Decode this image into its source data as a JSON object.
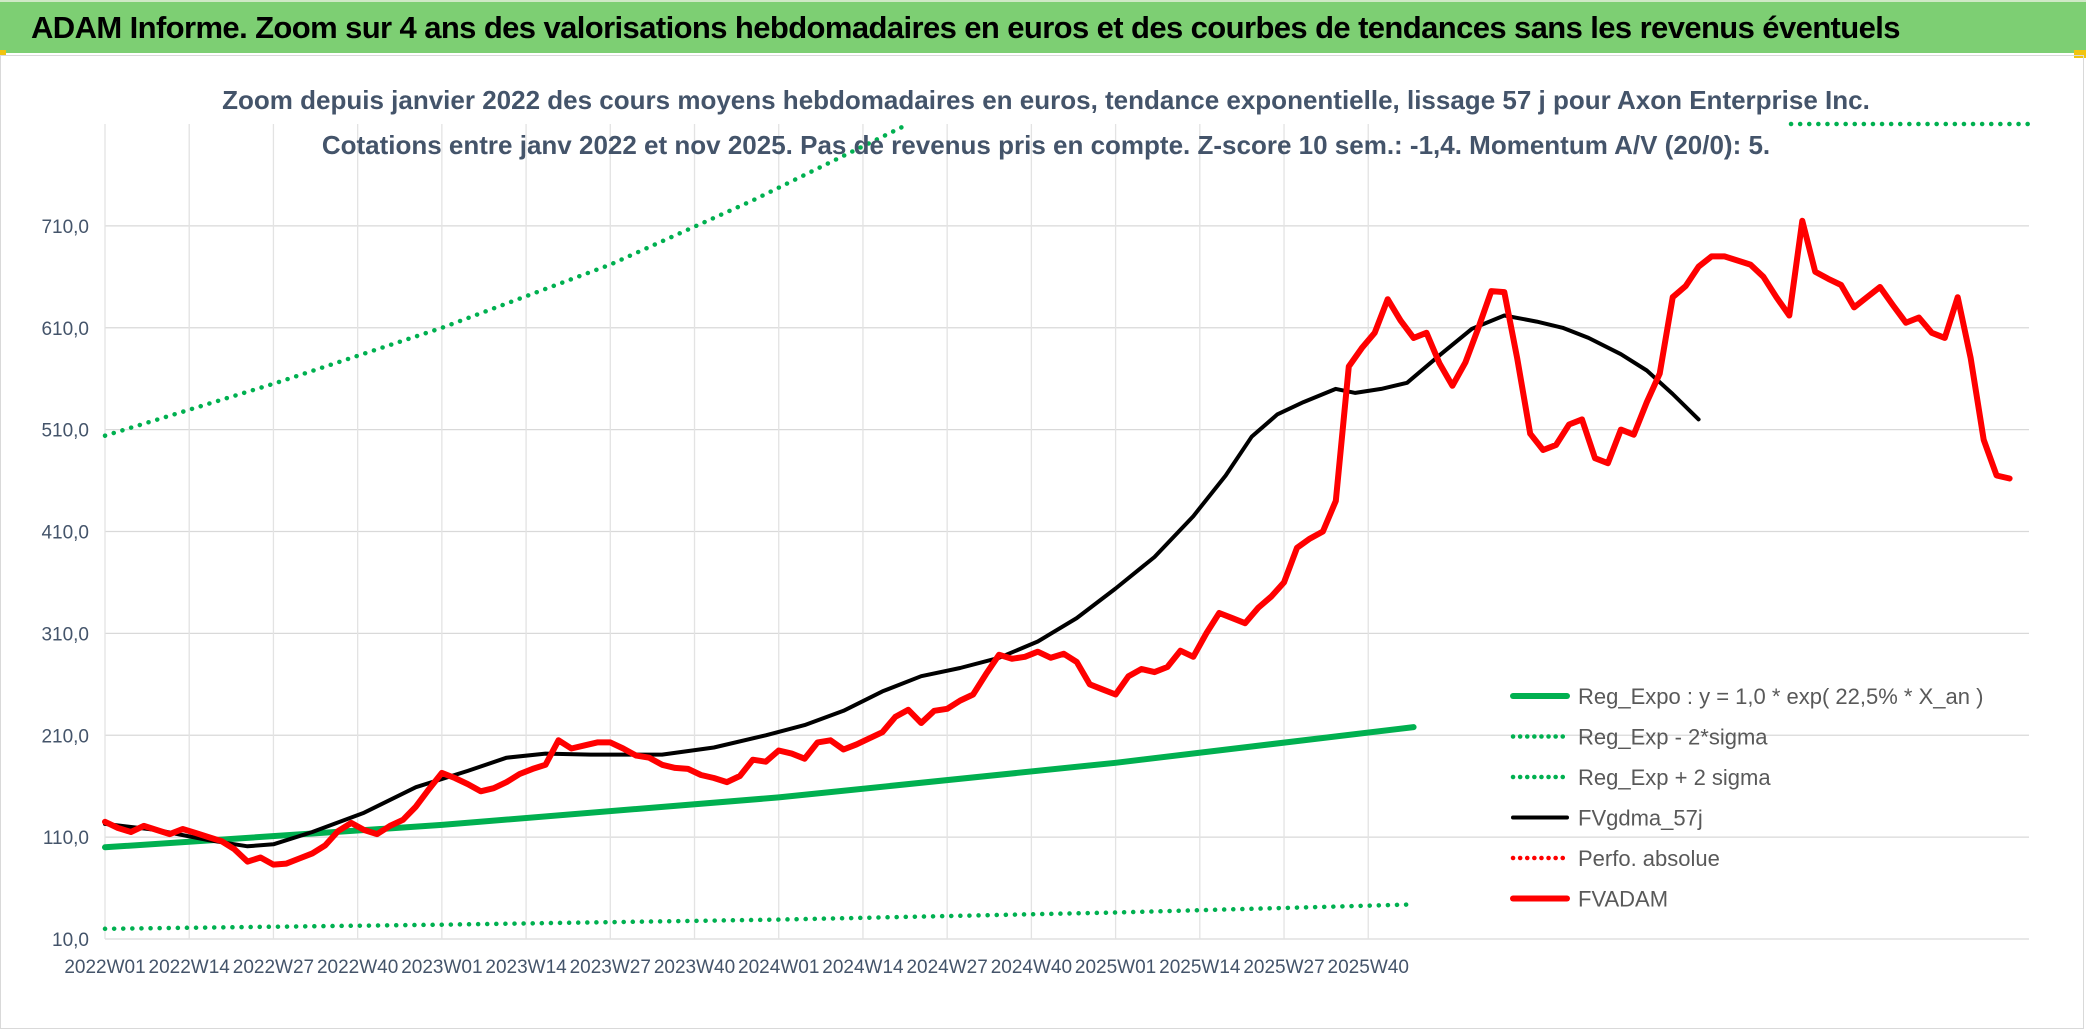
{
  "banner": {
    "title": "ADAM Informe. Zoom sur 4 ans des valorisations hebdomadaires en euros et des courbes de tendances sans les revenus éventuels"
  },
  "colors": {
    "banner_bg": "#7dcf73",
    "accent_yellow": "#f1c40f",
    "green_series": "#00b050",
    "red_series": "#ff0000",
    "black_series": "#000000",
    "text": "#44546a"
  },
  "chart_data": {
    "type": "line",
    "title_lines": [
      "Zoom depuis janvier 2022 des cours moyens hebdomadaires en euros, tendance exponentielle, lissage 57 j pour Axon Enterprise Inc.",
      "Cotations entre janv 2022 et nov 2025. Pas de revenus pris en compte. Z-score 10 sem.: -1,4. Momentum A/V (20/0): 5."
    ],
    "x_tick_labels": [
      "2022W01",
      "2022W14",
      "2022W27",
      "2022W40",
      "2023W01",
      "2023W14",
      "2023W27",
      "2023W40",
      "2024W01",
      "2024W14",
      "2024W27",
      "2024W40",
      "2025W01",
      "2025W14",
      "2025W27",
      "2025W40"
    ],
    "y_tick_labels": [
      "10,0",
      "110,0",
      "210,0",
      "310,0",
      "410,0",
      "510,0",
      "610,0",
      "710,0"
    ],
    "ylim": [
      10,
      810
    ],
    "grid": true,
    "legend_position": "right",
    "series": [
      {
        "name": "Reg_Expo : y = 1,0 * exp( 22,5% * X_an )",
        "color": "#00b050",
        "style": "solid-thick",
        "points": [
          [
            0,
            100
          ],
          [
            52,
            122
          ],
          [
            104,
            149
          ],
          [
            156,
            183
          ],
          [
            202,
            218
          ]
        ]
      },
      {
        "name": "Reg_Exp - 2*sigma",
        "color": "#00b050",
        "style": "dotted",
        "points": [
          [
            0,
            20
          ],
          [
            52,
            24
          ],
          [
            104,
            29
          ],
          [
            156,
            36
          ],
          [
            202,
            44
          ]
        ]
      },
      {
        "name": "Reg_Exp + 2 sigma",
        "color": "#00b050",
        "style": "dotted",
        "points": [
          [
            0,
            504
          ],
          [
            26,
            555
          ],
          [
            52,
            610
          ],
          [
            78,
            672
          ],
          [
            100,
            735
          ],
          [
            124,
            810
          ]
        ]
      },
      {
        "name": "FVgdma_57j",
        "color": "#000000",
        "style": "solid",
        "points": [
          [
            0,
            123
          ],
          [
            8,
            117
          ],
          [
            16,
            107
          ],
          [
            22,
            101
          ],
          [
            26,
            103
          ],
          [
            32,
            115
          ],
          [
            40,
            134
          ],
          [
            48,
            159
          ],
          [
            56,
            175
          ],
          [
            62,
            188
          ],
          [
            68,
            192
          ],
          [
            75,
            191
          ],
          [
            86,
            191
          ],
          [
            94,
            198
          ],
          [
            102,
            210
          ],
          [
            108,
            220
          ],
          [
            114,
            234
          ],
          [
            120,
            253
          ],
          [
            126,
            268
          ],
          [
            132,
            276
          ],
          [
            138,
            286
          ],
          [
            144,
            302
          ],
          [
            150,
            325
          ],
          [
            156,
            354
          ],
          [
            162,
            385
          ],
          [
            168,
            425
          ],
          [
            173,
            465
          ],
          [
            177,
            503
          ],
          [
            181,
            525
          ],
          [
            185,
            537
          ],
          [
            190,
            550
          ],
          [
            193,
            546
          ],
          [
            197,
            550
          ],
          [
            201,
            556
          ],
          [
            206,
            583
          ],
          [
            211,
            609
          ],
          [
            216,
            622
          ],
          [
            221,
            616
          ],
          [
            225,
            610
          ],
          [
            229,
            600
          ],
          [
            234,
            584
          ],
          [
            238,
            568
          ],
          [
            242,
            545
          ],
          [
            246,
            520
          ]
        ]
      },
      {
        "name": "Perfo. absolue",
        "color": "#ff0000",
        "style": "dotted",
        "points": [
          [
            258,
            810
          ]
        ]
      },
      {
        "name": "FVADAM",
        "color": "#ff0000",
        "style": "solid-thick",
        "points": [
          [
            0,
            125
          ],
          [
            2,
            119
          ],
          [
            4,
            115
          ],
          [
            6,
            121
          ],
          [
            8,
            117
          ],
          [
            10,
            113
          ],
          [
            12,
            118
          ],
          [
            14,
            114
          ],
          [
            16,
            110
          ],
          [
            18,
            106
          ],
          [
            20,
            98
          ],
          [
            22,
            86
          ],
          [
            24,
            90
          ],
          [
            26,
            83
          ],
          [
            28,
            84
          ],
          [
            30,
            89
          ],
          [
            32,
            94
          ],
          [
            34,
            102
          ],
          [
            36,
            116
          ],
          [
            38,
            124
          ],
          [
            40,
            117
          ],
          [
            42,
            113
          ],
          [
            44,
            121
          ],
          [
            46,
            127
          ],
          [
            48,
            140
          ],
          [
            50,
            157
          ],
          [
            52,
            173
          ],
          [
            54,
            168
          ],
          [
            56,
            162
          ],
          [
            58,
            155
          ],
          [
            60,
            158
          ],
          [
            62,
            164
          ],
          [
            64,
            172
          ],
          [
            66,
            177
          ],
          [
            68,
            181
          ],
          [
            70,
            205
          ],
          [
            72,
            197
          ],
          [
            74,
            200
          ],
          [
            76,
            203
          ],
          [
            78,
            203
          ],
          [
            80,
            197
          ],
          [
            82,
            190
          ],
          [
            84,
            188
          ],
          [
            86,
            181
          ],
          [
            88,
            178
          ],
          [
            90,
            177
          ],
          [
            92,
            171
          ],
          [
            94,
            168
          ],
          [
            96,
            164
          ],
          [
            98,
            170
          ],
          [
            100,
            186
          ],
          [
            102,
            184
          ],
          [
            104,
            195
          ],
          [
            106,
            192
          ],
          [
            108,
            187
          ],
          [
            110,
            203
          ],
          [
            112,
            205
          ],
          [
            114,
            196
          ],
          [
            116,
            201
          ],
          [
            118,
            207
          ],
          [
            120,
            213
          ],
          [
            122,
            228
          ],
          [
            124,
            235
          ],
          [
            126,
            222
          ],
          [
            128,
            234
          ],
          [
            130,
            236
          ],
          [
            132,
            244
          ],
          [
            134,
            250
          ],
          [
            136,
            270
          ],
          [
            138,
            289
          ],
          [
            140,
            285
          ],
          [
            142,
            287
          ],
          [
            144,
            292
          ],
          [
            146,
            286
          ],
          [
            148,
            290
          ],
          [
            150,
            282
          ],
          [
            152,
            260
          ],
          [
            154,
            255
          ],
          [
            156,
            250
          ],
          [
            158,
            268
          ],
          [
            160,
            275
          ],
          [
            162,
            272
          ],
          [
            164,
            277
          ],
          [
            166,
            293
          ],
          [
            168,
            287
          ],
          [
            170,
            310
          ],
          [
            172,
            330
          ],
          [
            174,
            325
          ],
          [
            176,
            320
          ],
          [
            178,
            335
          ],
          [
            180,
            346
          ],
          [
            182,
            360
          ],
          [
            184,
            394
          ],
          [
            186,
            403
          ],
          [
            188,
            410
          ],
          [
            190,
            440
          ],
          [
            192,
            572
          ],
          [
            194,
            590
          ],
          [
            196,
            605
          ],
          [
            198,
            638
          ],
          [
            200,
            617
          ],
          [
            202,
            600
          ],
          [
            204,
            605
          ],
          [
            206,
            575
          ],
          [
            208,
            553
          ],
          [
            210,
            576
          ],
          [
            212,
            610
          ],
          [
            214,
            646
          ],
          [
            216,
            645
          ],
          [
            218,
            580
          ],
          [
            220,
            506
          ],
          [
            222,
            490
          ],
          [
            224,
            495
          ],
          [
            226,
            515
          ],
          [
            228,
            520
          ],
          [
            230,
            482
          ],
          [
            232,
            477
          ],
          [
            234,
            510
          ],
          [
            236,
            505
          ],
          [
            238,
            537
          ],
          [
            240,
            565
          ],
          [
            242,
            640
          ],
          [
            244,
            651
          ],
          [
            246,
            670
          ],
          [
            248,
            680
          ],
          [
            250,
            680
          ],
          [
            252,
            676
          ],
          [
            254,
            672
          ],
          [
            256,
            660
          ],
          [
            258,
            640
          ],
          [
            260,
            622
          ],
          [
            262,
            715
          ],
          [
            264,
            665
          ],
          [
            266,
            658
          ],
          [
            268,
            652
          ],
          [
            270,
            630
          ],
          [
            272,
            640
          ],
          [
            274,
            650
          ],
          [
            276,
            632
          ],
          [
            278,
            615
          ],
          [
            280,
            620
          ],
          [
            282,
            605
          ],
          [
            284,
            600
          ],
          [
            286,
            640
          ],
          [
            288,
            580
          ],
          [
            290,
            500
          ],
          [
            292,
            465
          ],
          [
            294,
            462
          ]
        ]
      }
    ]
  }
}
